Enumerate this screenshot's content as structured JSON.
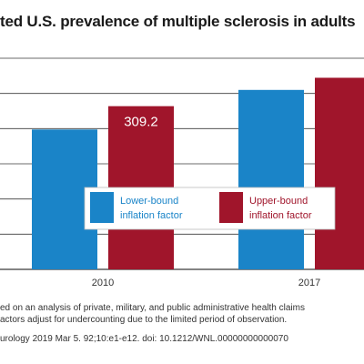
{
  "title": "ted U.S. prevalence of multiple sclerosis in adults",
  "notes": [
    "ed on an analysis of private, military, and public administrative health claims",
    "actors adjust for undercounting due to the limited period of observation."
  ],
  "source": "urology 2019 Mar 5. 92;10:e1-e12. doi: 10.1212/WNL.00000000000070",
  "colors": {
    "lower": "#1a84c8",
    "upper": "#a0152b",
    "grid": "#3a3a3a",
    "plot_background": "#ffffff"
  },
  "chart_data": {
    "type": "bar",
    "categories": [
      "2010",
      "2017"
    ],
    "series": [
      {
        "name": "Lower-bound inflation factor",
        "values": [
          265,
          340
        ]
      },
      {
        "name": "Upper-bound inflation factor",
        "values": [
          309.2,
          363
        ]
      }
    ],
    "data_labels": [
      {
        "series": 1,
        "category": 0,
        "text": "309.2"
      }
    ],
    "legend": {
      "placement": "bottom-center, inside plot",
      "entries": [
        {
          "line1": "Lower-bound",
          "line2": "inflation factor"
        },
        {
          "line1": "Upper-bound",
          "line2": "inflation factor"
        }
      ]
    },
    "ylim": [
      0,
      400
    ],
    "grid": true
  }
}
